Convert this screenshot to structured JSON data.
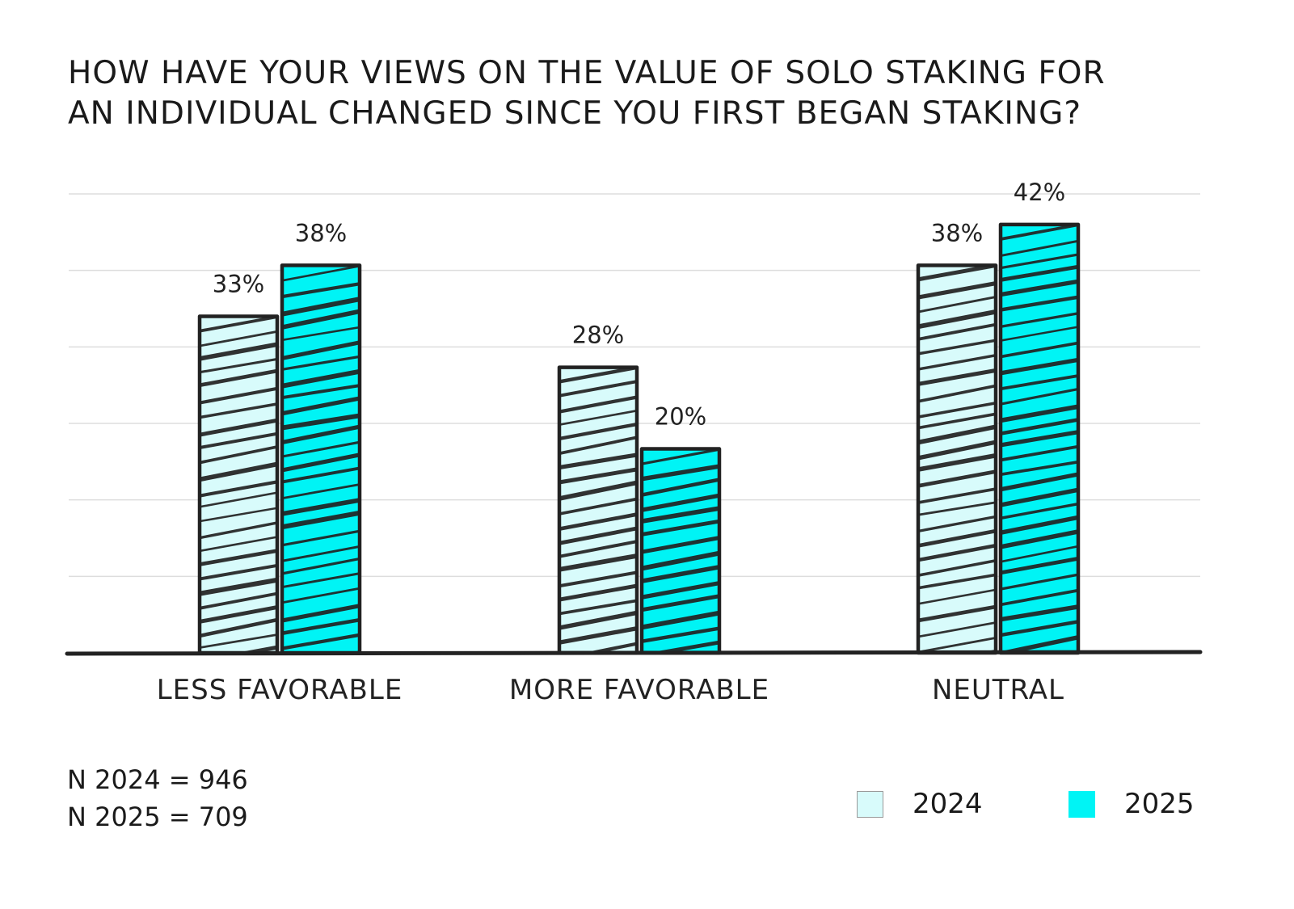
{
  "title_lines": [
    "How have your views on the value of solo staking for",
    "an individual changed since you first began staking?"
  ],
  "colors": {
    "series_2024": "#d8fbfb",
    "series_2025": "#00f4f5",
    "ink": "#222222",
    "grid": "#dddddd"
  },
  "chart_data": {
    "type": "bar",
    "title": "How have your views on the value of solo staking for an individual changed since you first began staking?",
    "xlabel": "",
    "ylabel": "",
    "ylim": [
      0,
      45
    ],
    "grid": true,
    "categories": [
      "LESS FAVORABLE",
      "MORE FAVORABLE",
      "NEUTRAL"
    ],
    "series": [
      {
        "name": "2024",
        "values": [
          33,
          28,
          38
        ],
        "labels": [
          "33%",
          "28%",
          "38%"
        ]
      },
      {
        "name": "2025",
        "values": [
          38,
          20,
          42
        ],
        "labels": [
          "38%",
          "20%",
          "42%"
        ]
      }
    ]
  },
  "notes": {
    "n2024": "N 2024 = 946",
    "n2025": "N 2025 = 709"
  },
  "legend": {
    "label_2024": "2024",
    "label_2025": "2025"
  }
}
